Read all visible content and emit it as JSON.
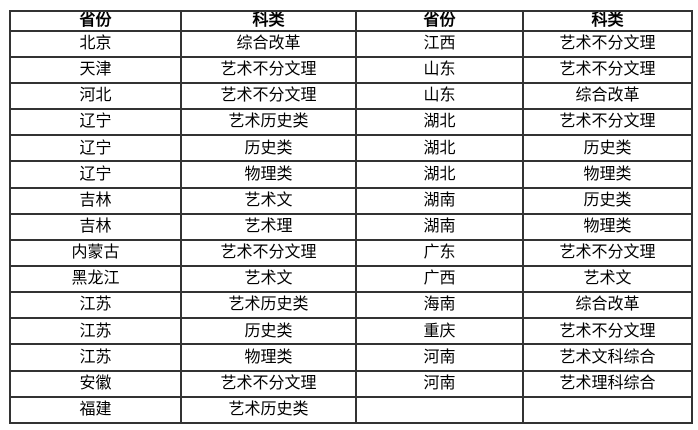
{
  "colors": {
    "background": "#ffffff",
    "border": "#333333",
    "text": "#000000"
  },
  "table": {
    "headers": [
      "省份",
      "科类",
      "省份",
      "科类"
    ],
    "rows": [
      [
        "北京",
        "综合改革",
        "江西",
        "艺术不分文理"
      ],
      [
        "天津",
        "艺术不分文理",
        "山东",
        "艺术不分文理"
      ],
      [
        "河北",
        "艺术不分文理",
        "山东",
        "综合改革"
      ],
      [
        "辽宁",
        "艺术历史类",
        "湖北",
        "艺术不分文理"
      ],
      [
        "辽宁",
        "历史类",
        "湖北",
        "历史类"
      ],
      [
        "辽宁",
        "物理类",
        "湖北",
        "物理类"
      ],
      [
        "吉林",
        "艺术文",
        "湖南",
        "历史类"
      ],
      [
        "吉林",
        "艺术理",
        "湖南",
        "物理类"
      ],
      [
        "内蒙古",
        "艺术不分文理",
        "广东",
        "艺术不分文理"
      ],
      [
        "黑龙江",
        "艺术文",
        "广西",
        "艺术文"
      ],
      [
        "江苏",
        "艺术历史类",
        "海南",
        "综合改革"
      ],
      [
        "江苏",
        "历史类",
        "重庆",
        "艺术不分文理"
      ],
      [
        "江苏",
        "物理类",
        "河南",
        "艺术文科综合"
      ],
      [
        "安徽",
        "艺术不分文理",
        "河南",
        "艺术理科综合"
      ],
      [
        "福建",
        "艺术历史类",
        "",
        ""
      ]
    ]
  }
}
